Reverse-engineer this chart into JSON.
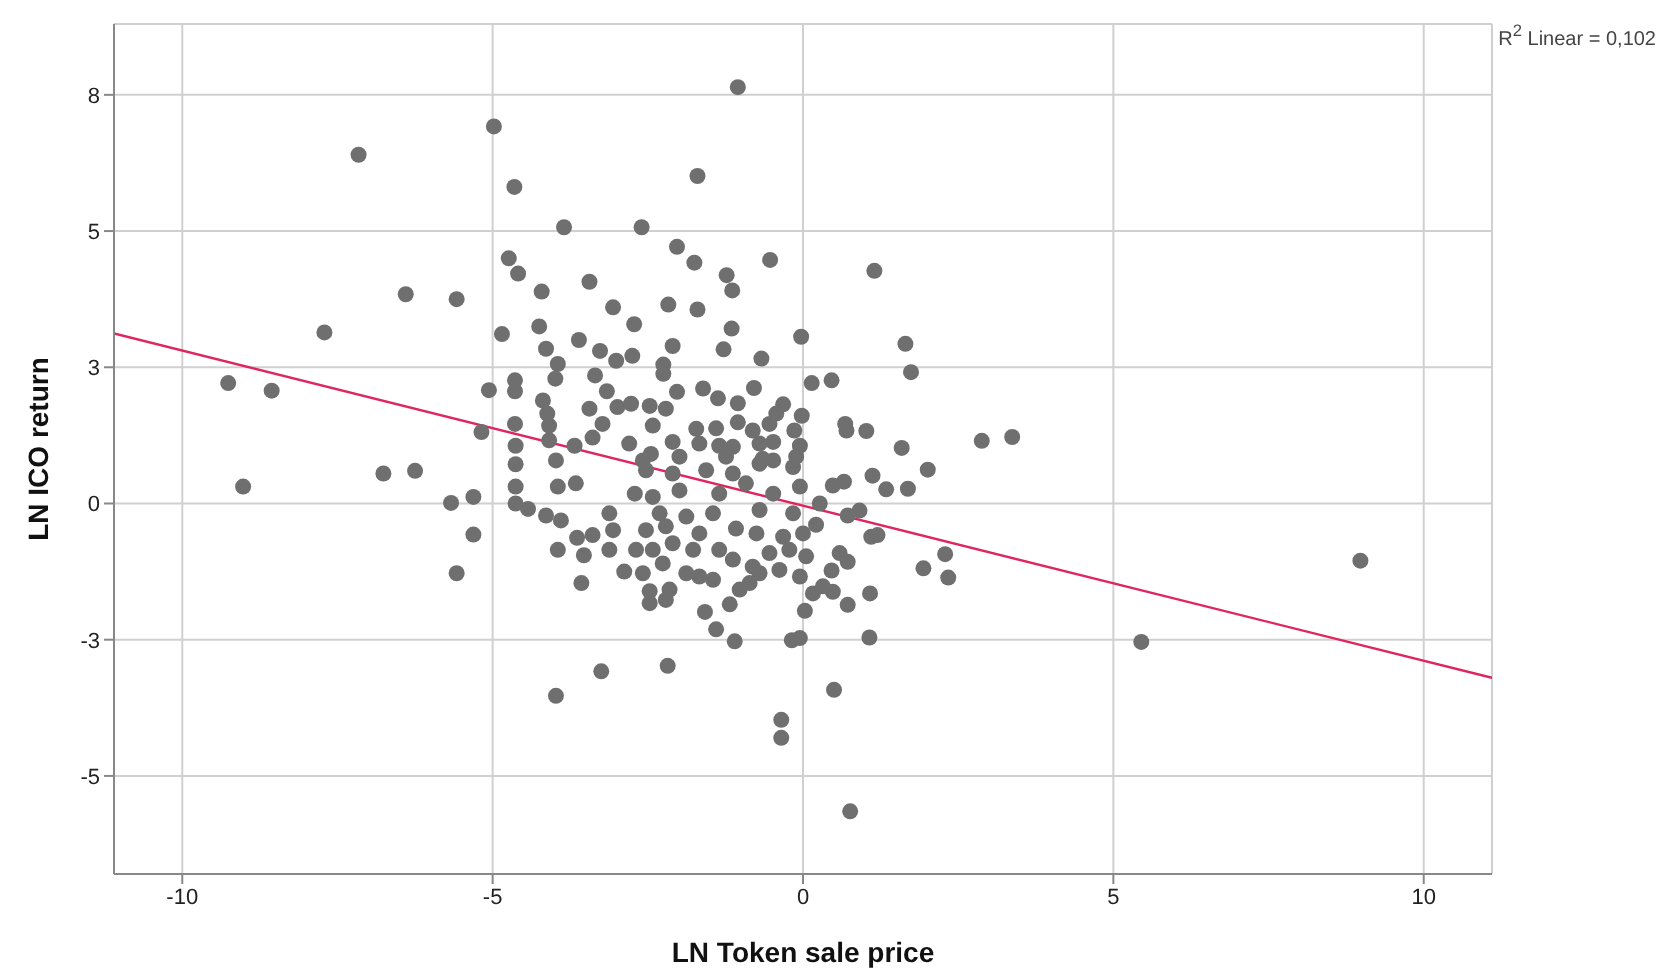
{
  "chart_data": {
    "type": "scatter",
    "xlabel": "LN Token sale price",
    "ylabel": "LN ICO return",
    "annotations": [
      "R$^{2}$ Linear = 0,102"
    ],
    "xlim": [
      -11.1,
      11.1
    ],
    "ylim": [
      -6.8,
      8.8
    ],
    "xticks": [
      -10,
      -5,
      0,
      5,
      10
    ],
    "yticks": [
      {
        "value": 7.5,
        "label": "8"
      },
      5,
      {
        "value": 2.5,
        "label": "3"
      },
      0,
      {
        "value": -2.5,
        "label": "-3"
      },
      -5
    ],
    "grid": true,
    "marker": "circle",
    "series": [
      {
        "color": "#6f6f6f",
        "x": [
          -7.16,
          -6.4,
          -5.58,
          -7.71,
          -9.26,
          -8.56,
          -9.02,
          -6.76,
          -6.25,
          -5.67,
          -5.31,
          -5.31,
          -5.58,
          -4.98,
          -4.65,
          -3.85,
          -2.6,
          -4.74,
          -4.59,
          -4.21,
          -3.44,
          -3.06,
          -2.72,
          -4.85,
          -4.25,
          -4.14,
          -3.61,
          -3.27,
          -3.01,
          -2.75,
          -3.95,
          -3.99,
          -3.35,
          -3.16,
          -4.64,
          -4.64,
          -5.06,
          -4.19,
          -4.12,
          -3.44,
          -2.99,
          -2.77,
          -2.47,
          -5.18,
          -4.64,
          -4.09,
          -3.23,
          -4.63,
          -4.09,
          -3.68,
          -3.39,
          -2.8,
          -4.63,
          -3.98,
          -2.58,
          -4.63,
          -3.95,
          -3.66,
          -4.63,
          -4.43,
          -4.14,
          -3.9,
          -3.64,
          -3.39,
          -3.95,
          -3.53,
          -3.57,
          -3.12,
          -3.06,
          -3.12,
          -2.88,
          -2.69,
          -2.58,
          -2.71,
          -2.47,
          -3.25,
          -3.98,
          -1.05,
          -1.7,
          -2.03,
          -1.75,
          -0.53,
          -1.23,
          -1.14,
          -2.17,
          -1.7,
          -1.15,
          -0.03,
          -2.1,
          -1.28,
          -0.67,
          -2.25,
          -2.25,
          0.14,
          0.46,
          -2.03,
          -1.61,
          -1.37,
          -0.79,
          -1.05,
          -2.21,
          -0.32,
          -0.43,
          -0.54,
          -0.02,
          -2.42,
          -1.72,
          -1.4,
          -1.05,
          -0.81,
          -0.14,
          0.68,
          -2.1,
          -1.67,
          -1.35,
          -1.13,
          -0.7,
          -0.48,
          -0.05,
          -2.45,
          -1.99,
          -1.24,
          -0.65,
          -0.11,
          1.15,
          1.65,
          1.74,
          0.7,
          1.02,
          1.59,
          2.01,
          2.88,
          3.37,
          0.48,
          0.66,
          1.12,
          1.34,
          1.69,
          0.91,
          0.72,
          1.1,
          1.2,
          0.59,
          0.72,
          0.46,
          2.29,
          1.94,
          2.34,
          0.48,
          1.08,
          0.72,
          1.07,
          0.5,
          0.76,
          5.45,
          8.98,
          -2.18,
          -0.35,
          -0.35,
          -1.58,
          -1.4,
          -1.1,
          -0.18,
          -0.05,
          0.03,
          -2.21,
          -2.47,
          -2.15,
          -1.18,
          -1.02,
          -0.86,
          -0.7,
          0.16,
          0.32,
          -1.67,
          -1.88,
          -1.45,
          -2.26,
          -1.13,
          -0.81,
          -0.38,
          -0.05,
          -2.42,
          -2.1,
          -1.77,
          -1.35,
          -0.54,
          -0.22,
          0.05,
          -2.53,
          -2.21,
          -1.67,
          -1.08,
          -0.75,
          -0.32,
          0.0,
          0.21,
          -2.31,
          -1.88,
          -1.45,
          -0.7,
          -0.16,
          0.27,
          -2.42,
          -1.99,
          -1.35,
          -0.92,
          -0.48,
          -0.05,
          -2.53,
          -2.1,
          -1.56,
          -1.13,
          -0.7,
          -0.16,
          -0.48
        ],
        "values": [
          6.4,
          3.84,
          3.75,
          3.14,
          2.21,
          2.07,
          0.31,
          0.55,
          0.6,
          0.01,
          0.12,
          -0.57,
          -1.28,
          6.92,
          5.81,
          5.07,
          5.07,
          4.5,
          4.22,
          3.89,
          4.07,
          3.6,
          3.29,
          3.11,
          3.25,
          2.84,
          3.0,
          2.8,
          2.62,
          2.71,
          2.56,
          2.29,
          2.35,
          2.06,
          2.26,
          2.06,
          2.08,
          1.89,
          1.65,
          1.74,
          1.77,
          1.83,
          1.79,
          1.31,
          1.46,
          1.43,
          1.46,
          1.06,
          1.16,
          1.06,
          1.21,
          1.1,
          0.72,
          0.79,
          0.79,
          0.31,
          0.31,
          0.37,
          0.0,
          -0.1,
          -0.22,
          -0.31,
          -0.63,
          -0.58,
          -0.85,
          -0.95,
          -1.46,
          -0.18,
          -0.49,
          -0.85,
          -1.25,
          -0.85,
          -1.28,
          0.18,
          -1.83,
          -3.08,
          -3.53,
          7.64,
          6.01,
          4.71,
          4.42,
          4.47,
          4.19,
          3.91,
          3.65,
          3.56,
          3.21,
          3.06,
          2.89,
          2.83,
          2.66,
          2.55,
          2.38,
          2.21,
          2.26,
          2.05,
          2.11,
          1.93,
          2.12,
          1.84,
          1.74,
          1.82,
          1.65,
          1.46,
          1.61,
          1.43,
          1.37,
          1.38,
          1.49,
          1.34,
          1.34,
          1.46,
          1.13,
          1.1,
          1.06,
          1.04,
          1.1,
          1.13,
          1.06,
          0.91,
          0.86,
          0.86,
          0.82,
          0.86,
          4.27,
          2.93,
          2.41,
          1.34,
          1.33,
          1.02,
          0.62,
          1.15,
          1.22,
          0.33,
          0.4,
          0.51,
          0.26,
          0.27,
          -0.13,
          -0.22,
          -0.61,
          -0.58,
          -0.91,
          -1.07,
          -1.23,
          -0.93,
          -1.19,
          -1.36,
          -1.62,
          -1.65,
          -1.86,
          -2.46,
          -3.42,
          -5.65,
          -2.54,
          -1.05,
          -2.98,
          -3.97,
          -4.3,
          -1.99,
          -2.31,
          -2.53,
          -2.51,
          -2.47,
          -1.97,
          -1.77,
          -1.61,
          -1.58,
          -1.85,
          -1.58,
          -1.46,
          -1.28,
          -1.65,
          -1.52,
          -1.34,
          -1.28,
          -1.4,
          -1.1,
          -1.03,
          -1.16,
          -1.22,
          -1.34,
          -0.85,
          -0.73,
          -0.85,
          -0.85,
          -0.91,
          -0.85,
          -0.97,
          -0.49,
          -0.42,
          -0.55,
          -0.46,
          -0.55,
          -0.61,
          -0.55,
          -0.39,
          -0.18,
          -0.24,
          -0.18,
          -0.12,
          -0.18,
          0.0,
          0.12,
          0.24,
          0.18,
          0.37,
          0.18,
          0.31,
          0.61,
          0.55,
          0.61,
          0.55,
          0.73,
          0.67,
          0.79
        ]
      },
      {
        "type": "line",
        "color": "#e0245e",
        "marker": "none",
        "x": [
          -11.1,
          11.1
        ],
        "values": [
          3.12,
          -3.2
        ]
      }
    ]
  }
}
